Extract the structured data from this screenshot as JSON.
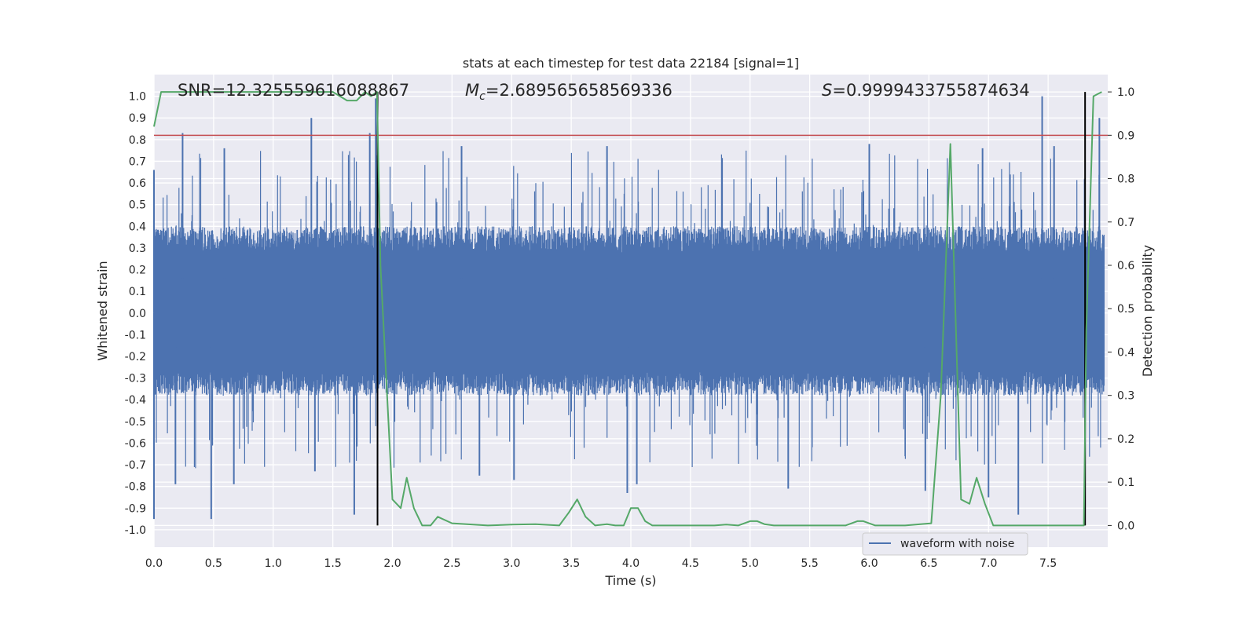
{
  "chart_data": {
    "type": "line",
    "title": "stats at each timestep for test data 22184 [signal=1]",
    "xlabel": "Time (s)",
    "ylabel": "Whitened strain",
    "ylabel_right": "Detection probability",
    "xlim": [
      0.0,
      8.0
    ],
    "ylim": [
      -1.08,
      1.1
    ],
    "ylim_right": [
      -0.05,
      1.04
    ],
    "x_ticks": [
      "0.0",
      "0.5",
      "1.0",
      "1.5",
      "2.0",
      "2.5",
      "3.0",
      "3.5",
      "4.0",
      "4.5",
      "5.0",
      "5.5",
      "6.0",
      "6.5",
      "7.0",
      "7.5"
    ],
    "y_ticks": [
      "-1.0",
      "-0.9",
      "-0.8",
      "-0.7",
      "-0.6",
      "-0.5",
      "-0.4",
      "-0.3",
      "-0.2",
      "-0.1",
      "0.0",
      "0.1",
      "0.2",
      "0.3",
      "0.4",
      "0.5",
      "0.6",
      "0.7",
      "0.8",
      "0.9",
      "1.0"
    ],
    "y_ticks_right": [
      "0.0",
      "0.1",
      "0.2",
      "0.3",
      "0.4",
      "0.5",
      "0.6",
      "0.7",
      "0.8",
      "0.9",
      "1.0"
    ],
    "grid": true,
    "legend": {
      "position": "bottom-right",
      "entries": [
        {
          "label": "waveform with noise",
          "color": "#4c72b0"
        }
      ]
    },
    "annotations": {
      "snr": {
        "label": "SNR",
        "value": "12.325559616088867"
      },
      "mc": {
        "symbol": "M",
        "sub": "c",
        "value": "2.689565658569336"
      },
      "s": {
        "symbol": "S",
        "value": "0.9999433755874634"
      }
    },
    "threshold_right": 0.9,
    "vlines": [
      1.875,
      7.81
    ],
    "series": [
      {
        "name": "waveform with noise",
        "color": "#4c72b0",
        "axis": "left",
        "envelope_typical": [
          -0.38,
          0.4
        ],
        "notable_peaks": [
          {
            "x": 0.0,
            "y": -0.95
          },
          {
            "x": 0.0,
            "y": 0.66
          },
          {
            "x": 0.18,
            "y": -0.79
          },
          {
            "x": 0.24,
            "y": 0.83
          },
          {
            "x": 0.48,
            "y": -0.95
          },
          {
            "x": 0.59,
            "y": 0.76
          },
          {
            "x": 0.67,
            "y": -0.79
          },
          {
            "x": 1.32,
            "y": 0.9
          },
          {
            "x": 1.35,
            "y": -0.73
          },
          {
            "x": 1.68,
            "y": -0.93
          },
          {
            "x": 1.81,
            "y": 0.83
          },
          {
            "x": 1.86,
            "y": 0.99
          },
          {
            "x": 2.58,
            "y": 0.77
          },
          {
            "x": 2.73,
            "y": -0.75
          },
          {
            "x": 3.02,
            "y": -0.77
          },
          {
            "x": 3.8,
            "y": 0.77
          },
          {
            "x": 3.97,
            "y": -0.83
          },
          {
            "x": 4.05,
            "y": -0.79
          },
          {
            "x": 5.32,
            "y": -0.81
          },
          {
            "x": 6.0,
            "y": 0.78
          },
          {
            "x": 6.47,
            "y": -0.82
          },
          {
            "x": 6.95,
            "y": 0.76
          },
          {
            "x": 7.0,
            "y": -0.85
          },
          {
            "x": 7.25,
            "y": -0.93
          },
          {
            "x": 7.45,
            "y": 1.0
          },
          {
            "x": 7.55,
            "y": 0.77
          },
          {
            "x": 7.93,
            "y": 0.9
          }
        ]
      },
      {
        "name": "",
        "color": "#55a868",
        "axis": "right",
        "x": [
          0.0,
          0.06,
          0.12,
          0.25,
          0.5,
          1.0,
          1.5,
          1.62,
          1.7,
          1.77,
          1.82,
          1.87,
          1.9,
          2.0,
          2.07,
          2.12,
          2.18,
          2.25,
          2.32,
          2.38,
          2.5,
          2.8,
          3.0,
          3.2,
          3.4,
          3.48,
          3.55,
          3.62,
          3.7,
          3.8,
          3.87,
          3.94,
          4.0,
          4.06,
          4.12,
          4.18,
          4.3,
          4.7,
          4.8,
          4.9,
          5.0,
          5.06,
          5.12,
          5.2,
          5.5,
          5.8,
          5.9,
          5.95,
          6.05,
          6.3,
          6.52,
          6.6,
          6.68,
          6.77,
          6.84,
          6.9,
          6.97,
          7.04,
          7.1,
          7.4,
          7.8,
          7.82,
          7.88,
          7.95
        ],
        "y": [
          0.92,
          1.0,
          1.0,
          1.0,
          1.0,
          1.0,
          1.0,
          0.98,
          0.98,
          1.0,
          0.99,
          1.0,
          0.6,
          0.06,
          0.04,
          0.11,
          0.04,
          0.0,
          0.0,
          0.02,
          0.005,
          0.0,
          0.002,
          0.003,
          0.0,
          0.03,
          0.06,
          0.02,
          0.0,
          0.003,
          0.0,
          0.0,
          0.04,
          0.04,
          0.01,
          0.0,
          0.0,
          0.0,
          0.002,
          0.0,
          0.01,
          0.01,
          0.003,
          0.0,
          0.0,
          0.0,
          0.01,
          0.01,
          0.0,
          0.0,
          0.005,
          0.3,
          0.88,
          0.06,
          0.05,
          0.11,
          0.05,
          0.0,
          0.0,
          0.0,
          0.0,
          0.45,
          0.99,
          1.0
        ]
      }
    ]
  }
}
